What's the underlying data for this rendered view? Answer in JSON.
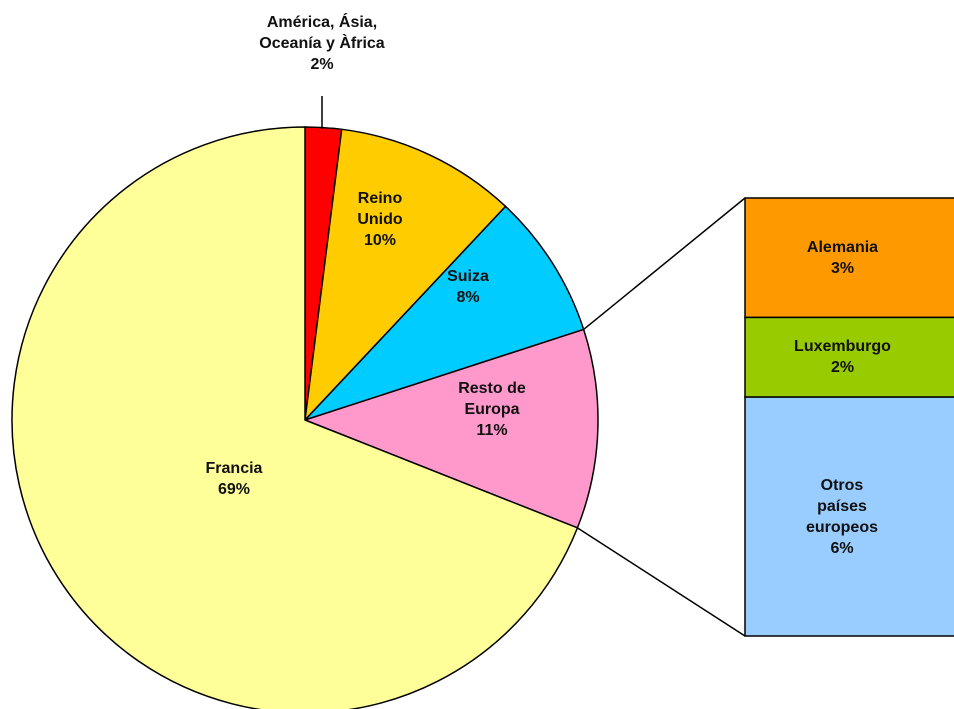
{
  "chart_data": {
    "type": "pie",
    "categories": [
      "América, Ásia, Oceanía y Àfrica",
      "Reino Unido",
      "Suiza",
      "Resto de Europa",
      "Francia"
    ],
    "values": [
      2,
      10,
      8,
      11,
      69
    ],
    "value_labels": [
      "2%",
      "10%",
      "8%",
      "11%",
      "69%"
    ],
    "colors": [
      "#ff0000",
      "#ffcc00",
      "#00ccff",
      "#ff99cc",
      "#ffff99"
    ],
    "breakdown": {
      "categories": [
        "Alemania",
        "Luxemburgo",
        "Otros países europeos"
      ],
      "values": [
        3,
        2,
        6
      ],
      "value_labels": [
        "3%",
        "2%",
        "6%"
      ],
      "colors": [
        "#ff9900",
        "#99cc00",
        "#99ccff"
      ]
    }
  }
}
